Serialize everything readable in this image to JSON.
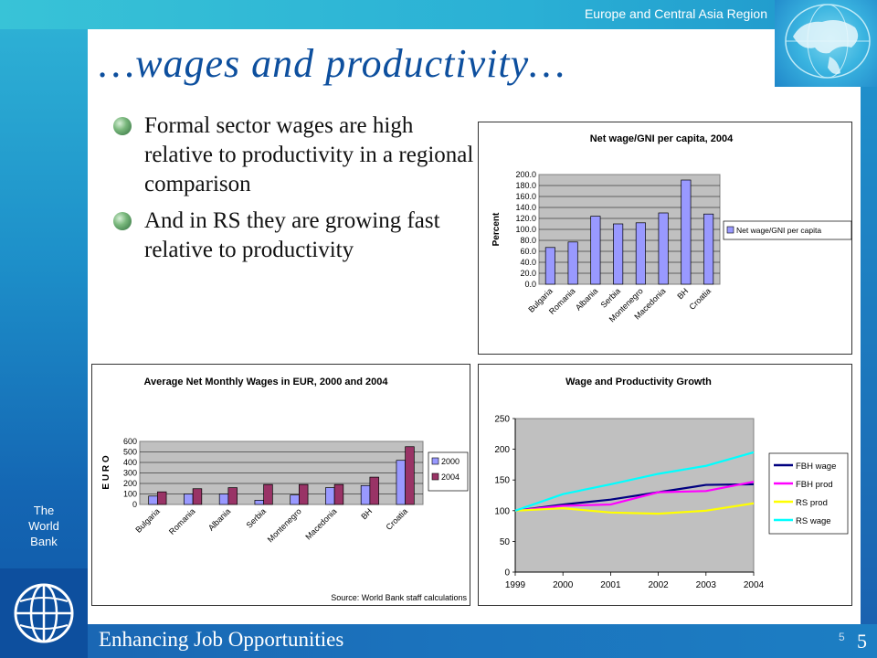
{
  "header": {
    "region": "Europe and Central Asia Region"
  },
  "sidebar": {
    "org_line1": "The",
    "org_line2": "World",
    "org_line3": "Bank"
  },
  "slide": {
    "title": "…wages and productivity…",
    "bullets": [
      "Formal sector wages are high relative to productivity in a regional comparison",
      "And in RS they are growing fast relative to productivity"
    ]
  },
  "footer": {
    "text": "Enhancing Job Opportunities",
    "page_small": "5",
    "page_big": "5"
  },
  "colors": {
    "bar1": "#9999ff",
    "bar2": "#993366",
    "plot_bg": "#c0c0c0",
    "fbh_wage": "#000080",
    "fbh_prod": "#ff00ff",
    "rs_prod": "#ffff00",
    "rs_wage": "#00ffff"
  },
  "chart_data": [
    {
      "type": "bar",
      "title": "Net wage/GNI per capita, 2004",
      "ylabel": "Percent",
      "ylim": [
        0,
        200
      ],
      "yticks": [
        "0.0",
        "20.0",
        "40.0",
        "60.0",
        "80.0",
        "100.0",
        "120.0",
        "140.0",
        "160.0",
        "180.0",
        "200.0"
      ],
      "categories": [
        "Bulgaria",
        "Romania",
        "Albania",
        "Serbia",
        "Montenegro",
        "Macedonia",
        "BH",
        "Croatia"
      ],
      "series": [
        {
          "name": "Net wage/GNI per capita",
          "values": [
            67,
            77,
            124,
            110,
            112,
            130,
            190,
            128
          ]
        }
      ],
      "legend": "right"
    },
    {
      "type": "bar",
      "title": "Average Net Monthly Wages in EUR, 2000 and 2004",
      "ylabel": "E U R O",
      "ylim": [
        0,
        600
      ],
      "yticks": [
        "0",
        "100",
        "200",
        "300",
        "400",
        "500",
        "600"
      ],
      "categories": [
        "Bulgaria",
        "Romania",
        "Albania",
        "Serbia",
        "Montenegro",
        "Macedonia",
        "BH",
        "Croatia"
      ],
      "series": [
        {
          "name": "2000",
          "values": [
            80,
            100,
            100,
            40,
            90,
            160,
            180,
            420
          ]
        },
        {
          "name": "2004",
          "values": [
            120,
            150,
            160,
            190,
            190,
            190,
            260,
            550
          ]
        }
      ],
      "source": "Source: World Bank staff calculations",
      "legend": "right"
    },
    {
      "type": "line",
      "title": "Wage and Productivity Growth",
      "x": [
        "1999",
        "2000",
        "2001",
        "2002",
        "2003",
        "2004"
      ],
      "ylim": [
        0,
        250
      ],
      "yticks": [
        "0",
        "50",
        "100",
        "150",
        "200",
        "250"
      ],
      "series": [
        {
          "name": "FBH wage",
          "values": [
            100,
            110,
            118,
            130,
            142,
            143
          ]
        },
        {
          "name": "FBH prod",
          "values": [
            100,
            108,
            110,
            130,
            132,
            147
          ]
        },
        {
          "name": "RS prod",
          "values": [
            100,
            104,
            97,
            95,
            100,
            112
          ]
        },
        {
          "name": "RS wage",
          "values": [
            100,
            127,
            143,
            160,
            173,
            195
          ]
        }
      ],
      "legend": "right"
    }
  ]
}
